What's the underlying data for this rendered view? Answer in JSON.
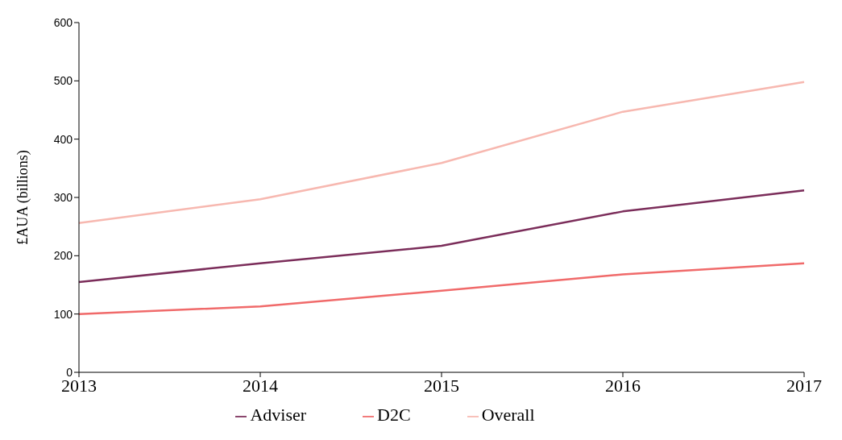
{
  "chart_data": {
    "type": "line",
    "ylabel": "£AUA (billions)",
    "categories": [
      "2013",
      "2014",
      "2015",
      "2016",
      "2017"
    ],
    "series": [
      {
        "name": "Adviser",
        "color": "#7b2d5a",
        "values": [
          155,
          187,
          217,
          276,
          312
        ]
      },
      {
        "name": "D2C",
        "color": "#f06a6a",
        "values": [
          100,
          113,
          140,
          168,
          187
        ]
      },
      {
        "name": "Overall",
        "color": "#f7b8b0",
        "values": [
          256,
          297,
          359,
          447,
          498
        ]
      }
    ],
    "ylim": [
      0,
      600
    ],
    "yticks": [
      0,
      100,
      200,
      300,
      400,
      500,
      600
    ],
    "grid": false,
    "legend": "bottom",
    "marker": "none",
    "line_style": "solid"
  }
}
